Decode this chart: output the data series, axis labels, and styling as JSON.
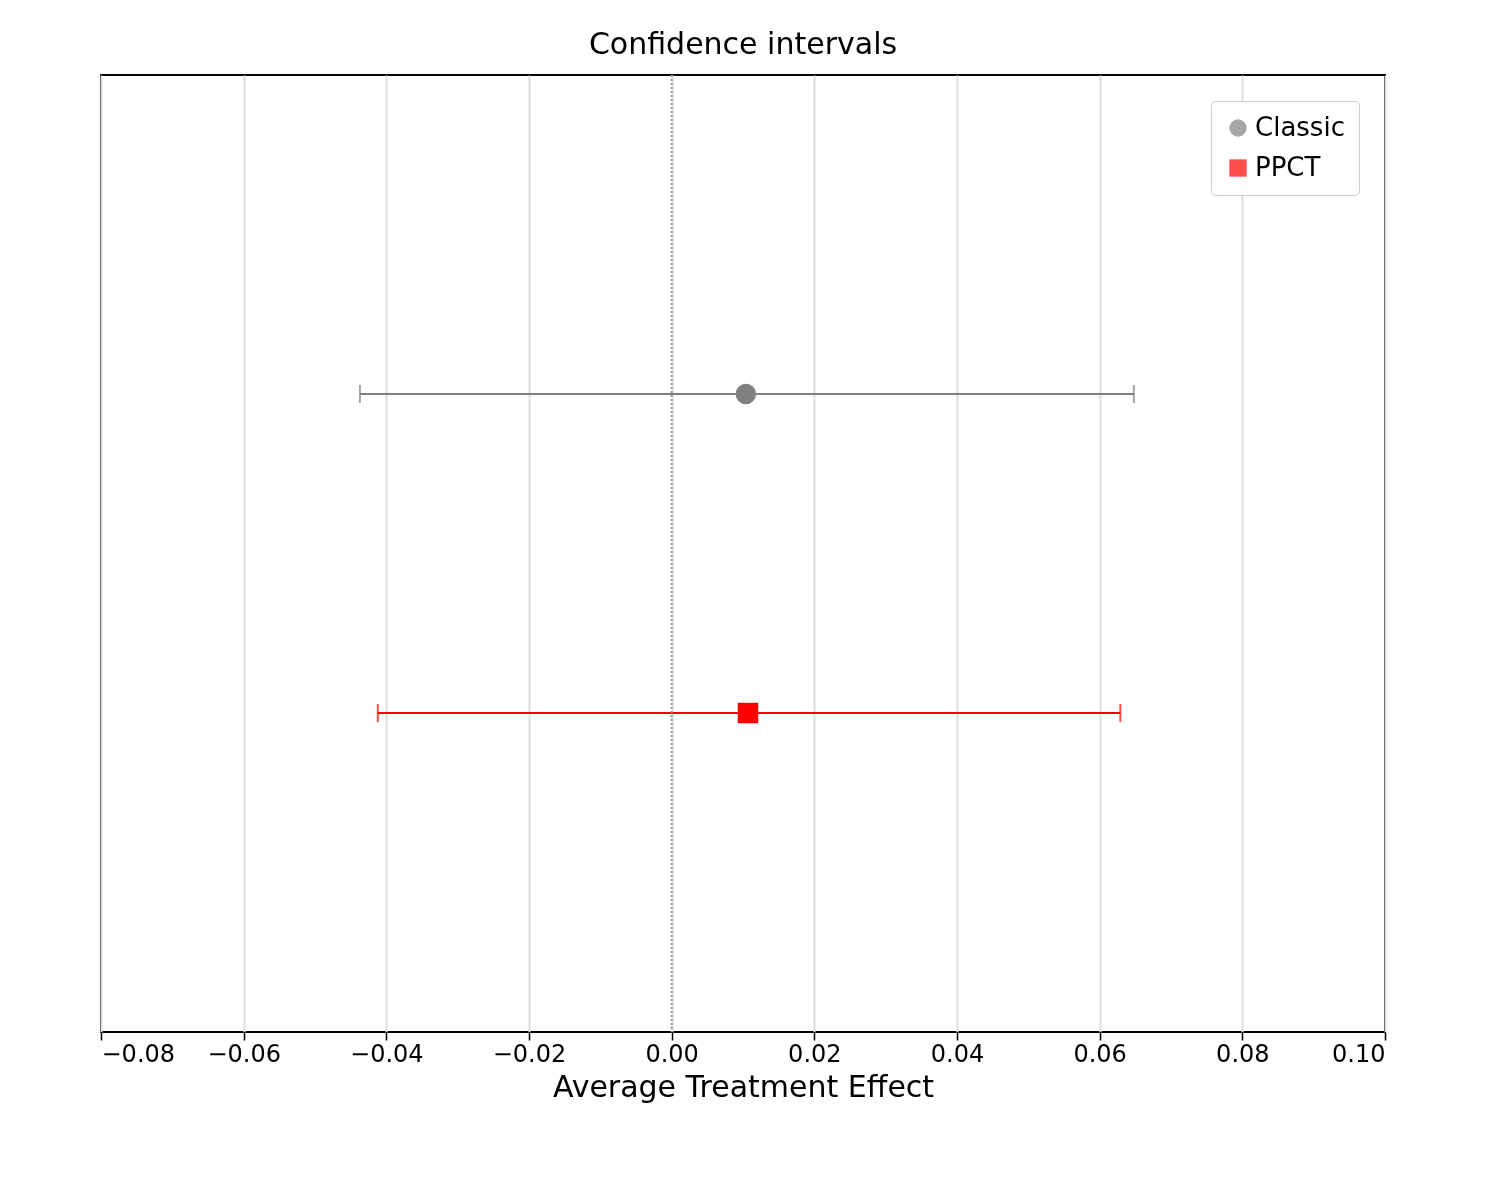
{
  "chart_data": {
    "type": "scatter",
    "orientation": "horizontal",
    "title": "Confidence intervals",
    "xlabel": "Average Treatment Effect",
    "categories": [
      null,
      null
    ],
    "series": [
      {
        "name": "Classic",
        "color": "#808080",
        "marker": "circle",
        "values": [
          0.0104,
          null
        ],
        "errors": [
          [
            -0.0437,
            0.0648
          ],
          null
        ]
      },
      {
        "name": "PPCT",
        "color": "#ff0000",
        "marker": "square",
        "values": [
          null,
          0.0107
        ],
        "errors": [
          null,
          [
            -0.0412,
            0.0629
          ]
        ]
      }
    ],
    "xlim": [
      -0.08,
      0.1
    ],
    "xticks": [
      {
        "value": -0.08,
        "label": "−0.08"
      },
      {
        "value": -0.06,
        "label": "−0.06"
      },
      {
        "value": -0.04,
        "label": "−0.04"
      },
      {
        "value": -0.02,
        "label": "−0.02"
      },
      "0.00",
      0.02,
      0.04,
      0.06,
      0.08,
      {
        "value": 0.1,
        "label": "0.10"
      }
    ],
    "ref_lines": [
      {
        "axis": "x",
        "value": 0,
        "color": "#999999",
        "line_style": "dotted"
      }
    ],
    "grid": "x",
    "legend": "top right",
    "tick_labels": "x"
  }
}
